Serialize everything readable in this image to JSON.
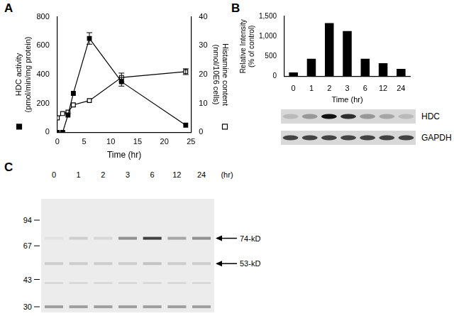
{
  "chart_data": [
    {
      "type": "line",
      "panel": "A",
      "xlabel": "Time (hr)",
      "ylabel": [
        "HDC activity",
        "(pmol/min/mg protein)"
      ],
      "y2label": [
        "Histamine content",
        "(nmol/10E6 cells)"
      ],
      "x": [
        0,
        1,
        2,
        3,
        6,
        12,
        24
      ],
      "xlim": [
        0,
        25
      ],
      "xticks": [
        0,
        5,
        10,
        15,
        20,
        25
      ],
      "ylim": [
        0,
        800
      ],
      "yticks": [
        0,
        200,
        400,
        600,
        800
      ],
      "y2lim": [
        0,
        40
      ],
      "y2ticks": [
        0,
        10,
        20,
        30,
        40
      ],
      "grid": false,
      "series": [
        {
          "name": "HDC activity",
          "color": "#000000",
          "marker": "square",
          "values": [
            0,
            0,
            120,
            270,
            650,
            350,
            50
          ],
          "errors": [
            0,
            0,
            0,
            0,
            40,
            30,
            0
          ]
        },
        {
          "name": "Histamine content",
          "color": "#000000",
          "marker": "open_square",
          "axis": "y2",
          "values": [
            5,
            6.5,
            7,
            9.5,
            11,
            19,
            21
          ],
          "errors": [
            0,
            0,
            0,
            0,
            0,
            1.5,
            1
          ]
        }
      ]
    },
    {
      "type": "bar",
      "panel": "B",
      "xlabel": "Time (hr)",
      "ylabel": [
        "Relative Intensity",
        "(% of control)"
      ],
      "categories": [
        "0",
        "1",
        "2",
        "3",
        "6",
        "12",
        "24"
      ],
      "values": [
        100,
        440,
        1330,
        1130,
        440,
        330,
        190
      ],
      "color": "#000000",
      "ylim": [
        0,
        1500
      ],
      "yticks": [
        0,
        500,
        1000,
        1500
      ],
      "grid": false
    }
  ],
  "blots": [
    {
      "panel": "B",
      "rows": [
        "HDC",
        "GAPDH"
      ]
    },
    {
      "panel": "C",
      "lanes": [
        "0",
        "1",
        "2",
        "3",
        "6",
        "12",
        "24"
      ],
      "lane_unit": "(hr)",
      "markers": [
        94,
        67,
        43,
        30
      ],
      "bands": [
        {
          "value": 74,
          "label": "74-kD"
        },
        {
          "value": 53,
          "label": "53-kD"
        }
      ]
    }
  ]
}
